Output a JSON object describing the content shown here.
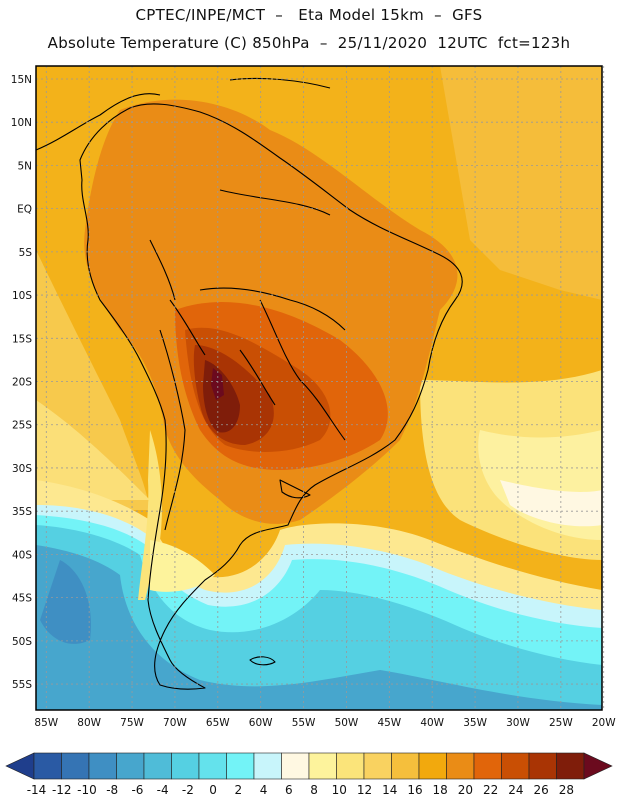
{
  "header": {
    "line1": "CPTEC/INPE/MCT  –   Eta Model 15km  –  GFS",
    "line2": "Absolute Temperature (C) 850hPa  –  25/11/2020  12UTC  fct=123h"
  },
  "map": {
    "lat_labels": [
      "15N",
      "10N",
      "5N",
      "EQ",
      "5S",
      "10S",
      "15S",
      "20S",
      "25S",
      "30S",
      "35S",
      "40S",
      "45S",
      "50S",
      "55S"
    ],
    "lon_labels": [
      "85W",
      "80W",
      "75W",
      "70W",
      "65W",
      "60W",
      "55W",
      "50W",
      "45W",
      "40W",
      "35W",
      "30W",
      "25W",
      "20W"
    ],
    "lat_range": [
      -58,
      16.5
    ],
    "lon_range": [
      -86.2,
      -20.2
    ],
    "grid": "dashed"
  },
  "colorbar": {
    "labels": [
      "-14",
      "-12",
      "-10",
      "-8",
      "-6",
      "-4",
      "-2",
      "0",
      "2",
      "4",
      "6",
      "8",
      "10",
      "12",
      "14",
      "16",
      "18",
      "20",
      "22",
      "24",
      "26",
      "28"
    ],
    "colors": [
      "#1f3e8c",
      "#2a5aa4",
      "#3574b4",
      "#3f8fc3",
      "#47a6cd",
      "#4fbcd8",
      "#55d0e2",
      "#64e2ec",
      "#73f3f7",
      "#c8f5fb",
      "#fff8e2",
      "#fdf39c",
      "#fbe47a",
      "#f9d260",
      "#f5bf3c",
      "#f2a90d",
      "#ea8c16",
      "#e1650a",
      "#c94f04",
      "#a93404",
      "#7f1d0a",
      "#6b0a1e"
    ]
  }
}
